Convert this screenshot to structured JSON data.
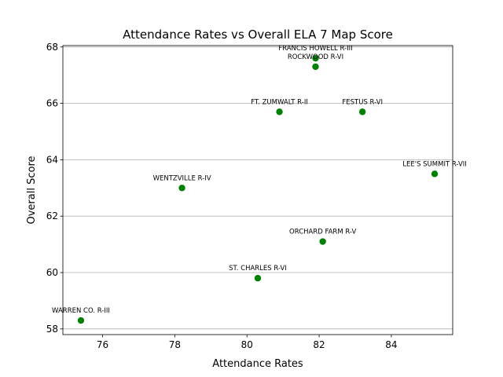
{
  "chart_data": {
    "type": "scatter",
    "title": "Attendance Rates vs Overall ELA 7 Map Score",
    "xlabel": "Attendance Rates",
    "ylabel": "Overall Score",
    "xlim": [
      74.9,
      85.7
    ],
    "ylim": [
      57.8,
      68.05
    ],
    "xticks": [
      76,
      78,
      80,
      82,
      84
    ],
    "yticks": [
      58,
      60,
      62,
      64,
      66,
      68
    ],
    "grid": "y-axis",
    "marker_color": "#008000",
    "points": [
      {
        "label": "FRANCIS HOWELL R-III",
        "x": 81.9,
        "y": 67.6
      },
      {
        "label": "ROCKWOOD R-VI",
        "x": 81.9,
        "y": 67.3
      },
      {
        "label": "FT. ZUMWALT R-II",
        "x": 80.9,
        "y": 65.7
      },
      {
        "label": "FESTUS R-VI",
        "x": 83.2,
        "y": 65.7
      },
      {
        "label": "LEE'S SUMMIT R-VII",
        "x": 85.2,
        "y": 63.5
      },
      {
        "label": "WENTZVILLE R-IV",
        "x": 78.2,
        "y": 63.0
      },
      {
        "label": "ORCHARD FARM R-V",
        "x": 82.1,
        "y": 61.1
      },
      {
        "label": "ST. CHARLES R-VI",
        "x": 80.3,
        "y": 59.8
      },
      {
        "label": "WARREN CO. R-III",
        "x": 75.4,
        "y": 58.3
      }
    ]
  }
}
